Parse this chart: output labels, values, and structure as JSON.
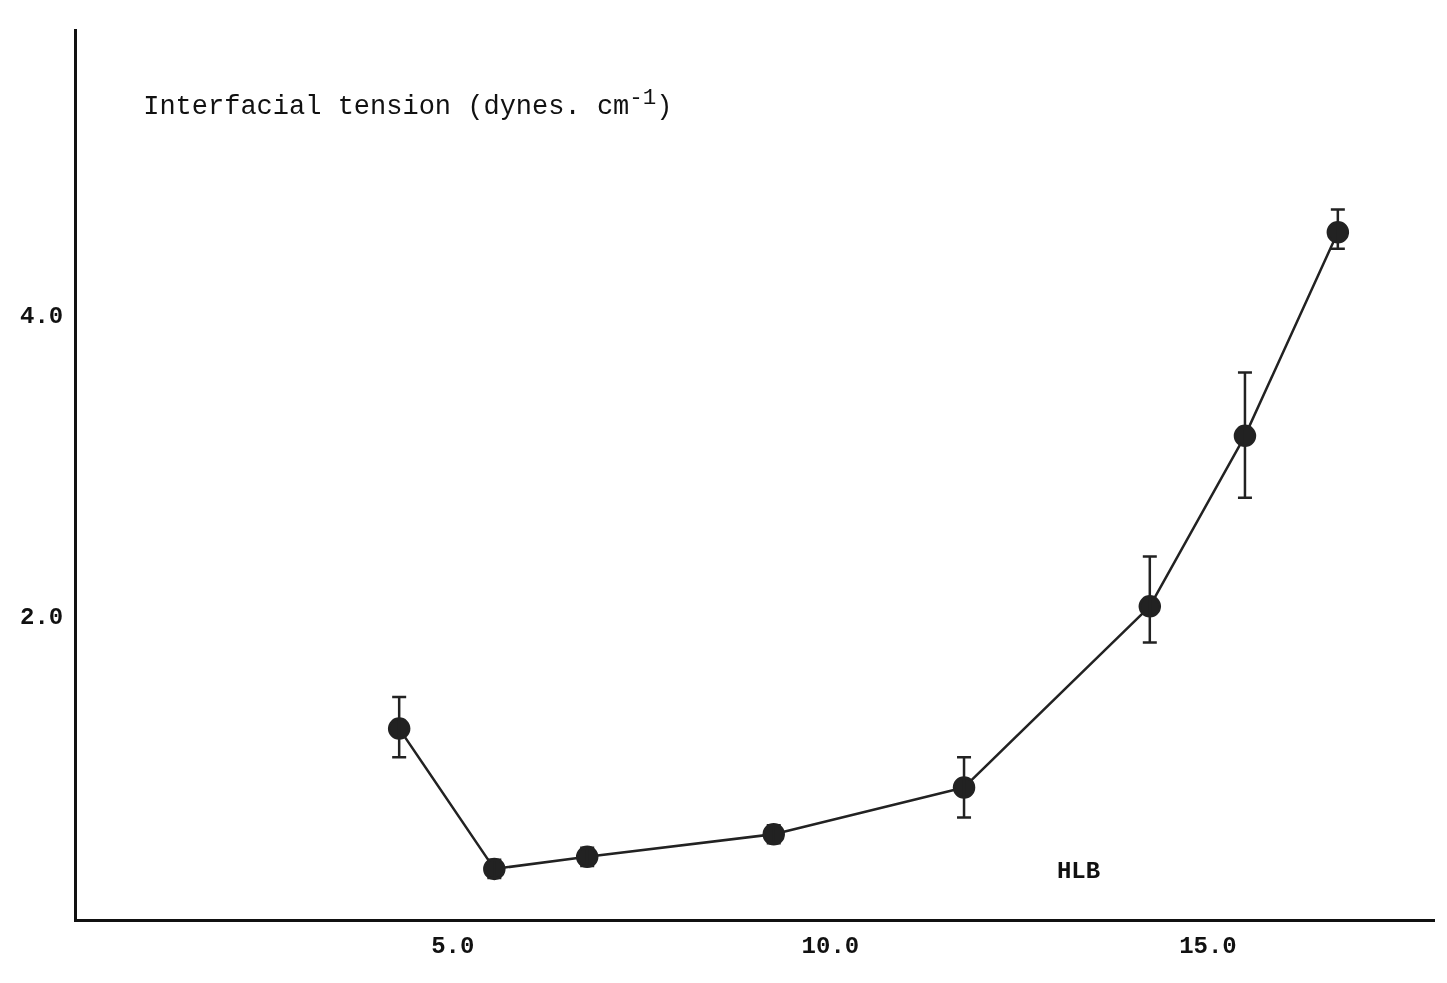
{
  "chart_data": {
    "type": "line",
    "xlabel": "HLB",
    "ylabel": "Interfacial tension (dynes. cm$^{-1}$)",
    "x": [
      4.29,
      5.55,
      6.78,
      9.25,
      11.77,
      14.23,
      15.49,
      16.72
    ],
    "series": [
      {
        "color": "#222222",
        "values": [
          1.27,
          0.34,
          0.42,
          0.57,
          0.88,
          2.08,
          3.21,
          4.56
        ],
        "errors": [
          [
            1.08,
            1.48
          ],
          [
            0.28,
            0.4
          ],
          [
            0.36,
            0.48
          ],
          [
            0.51,
            0.63
          ],
          [
            0.68,
            1.08
          ],
          [
            1.84,
            2.41
          ],
          [
            2.8,
            3.63
          ],
          [
            4.45,
            4.71
          ]
        ]
      }
    ],
    "xlim": [
      0,
      18
    ],
    "ylim": [
      0,
      5.9
    ],
    "xticks": [
      {
        "value": 5,
        "label": "5.0"
      },
      {
        "value": 10,
        "label": "10.0"
      },
      {
        "value": 15,
        "label": "15.0"
      }
    ],
    "yticks": [
      {
        "value": 2,
        "label": "2.0"
      },
      {
        "value": 4,
        "label": "4.0"
      }
    ],
    "grid": false,
    "legend": false,
    "marker": "circle",
    "line_style": "solid"
  }
}
